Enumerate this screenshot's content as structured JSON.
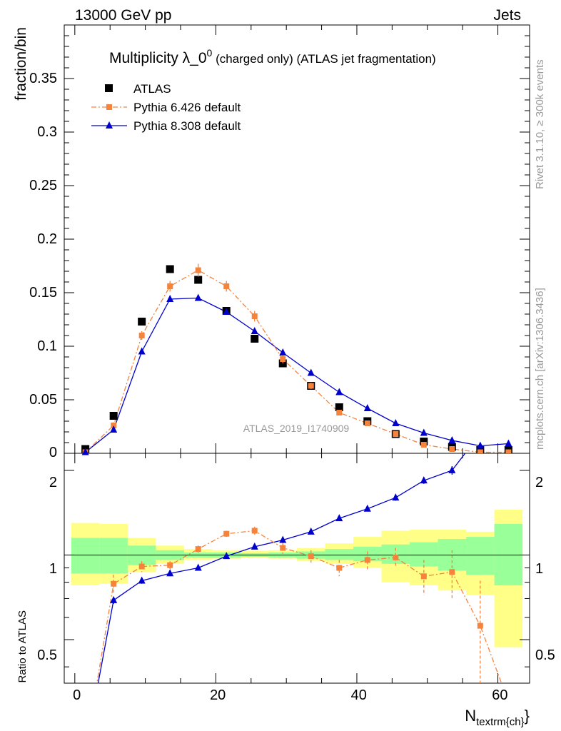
{
  "header": {
    "left": "13000 GeV pp",
    "right": "Jets"
  },
  "side_labels": {
    "rivet": "Rivet 3.1.10, ≥ 300k events",
    "mcplots": "mcplots.cern.ch [arXiv:1306.3436]"
  },
  "chart_data": {
    "type": "line",
    "title_main": "Multiplicity λ_0",
    "title_sup": "0",
    "title_tail": " (charged only) (ATLAS jet fragmentation)",
    "watermark": "ATLAS_2019_I1740909",
    "xlabel_main": "N",
    "xlabel_sub": "textrm{ch}",
    "xlabel_close": "}",
    "ylabel_top": "fraction/bin",
    "ylabel_bottom": "Ratio to ATLAS",
    "xlim": [
      -1.5,
      64.5
    ],
    "ylim_top": [
      0,
      0.4
    ],
    "ylim_bottom": [
      0.35,
      2.3
    ],
    "x_ticks": [
      "0",
      "20",
      "40",
      "60"
    ],
    "y_ticks_top": [
      "0",
      "0.05",
      "0.1",
      "0.15",
      "0.2",
      "0.25",
      "0.3",
      "0.35"
    ],
    "y_ticks_bottom": [
      "0.5",
      "1",
      "2"
    ],
    "legend": [
      {
        "name": "ATLAS",
        "color": "#000000"
      },
      {
        "name": "Pythia 6.426 default",
        "color": "#f5833c"
      },
      {
        "name": "Pythia 8.308 default",
        "color": "#0000cc"
      }
    ],
    "x": [
      1.5,
      5.5,
      9.5,
      13.5,
      17.5,
      21.5,
      25.5,
      29.5,
      33.5,
      37.5,
      41.5,
      45.5,
      49.5,
      53.5,
      57.5,
      61.5
    ],
    "series": [
      {
        "name": "ATLAS",
        "values": [
          0.004,
          0.035,
          0.123,
          0.172,
          0.162,
          0.133,
          0.107,
          0.084,
          0.063,
          0.043,
          0.03,
          0.018,
          0.011,
          0.006,
          0.003,
          0.003
        ]
      },
      {
        "name": "Pythia 6.426 default",
        "values": [
          0.001,
          0.026,
          0.11,
          0.156,
          0.171,
          0.156,
          0.128,
          0.088,
          0.063,
          0.038,
          0.028,
          0.018,
          0.008,
          0.004,
          0.001,
          0.001
        ],
        "errors": [
          0.0005,
          0.003,
          0.004,
          0.005,
          0.006,
          0.005,
          0.005,
          0.004,
          0.003,
          0.002,
          0.002,
          0.002,
          0.001,
          0.001,
          0.0005,
          0.0005
        ]
      },
      {
        "name": "Pythia 8.308 default",
        "values": [
          0.001,
          0.022,
          0.095,
          0.144,
          0.145,
          0.132,
          0.114,
          0.094,
          0.075,
          0.057,
          0.042,
          0.028,
          0.019,
          0.012,
          0.007,
          0.009
        ]
      }
    ],
    "ratio_series": [
      {
        "name": "Pythia 6.426 default",
        "values": [
          0.2,
          0.79,
          0.91,
          0.92,
          1.05,
          1.19,
          1.22,
          1.06,
          0.99,
          0.9,
          0.96,
          0.98,
          0.84,
          0.87,
          0.56,
          0.3
        ],
        "errors": [
          0.0,
          0.06,
          0.04,
          0.03,
          0.03,
          0.03,
          0.04,
          0.05,
          0.05,
          0.06,
          0.07,
          0.08,
          0.12,
          0.17,
          0.25,
          0.0
        ]
      },
      {
        "name": "Pythia 8.308 default",
        "values": [
          0.2,
          0.69,
          0.81,
          0.86,
          0.9,
          0.99,
          1.07,
          1.13,
          1.21,
          1.35,
          1.46,
          1.6,
          1.84,
          2.0,
          2.7,
          3.2
        ],
        "errors": [
          0.0,
          0.02,
          0.02,
          0.02,
          0.02,
          0.02,
          0.02,
          0.02,
          0.02,
          0.02,
          0.03,
          0.04,
          0.05,
          0.07,
          0.1,
          0.1
        ]
      }
    ],
    "uncertainty_bands": {
      "x_edges": [
        -0.5,
        3.5,
        7.5,
        11.5,
        15.5,
        19.5,
        23.5,
        27.5,
        31.5,
        35.5,
        39.5,
        43.5,
        47.5,
        51.5,
        55.5,
        59.5,
        63.5
      ],
      "stat_lo": [
        0.86,
        0.86,
        0.92,
        0.96,
        0.98,
        0.98,
        0.985,
        0.98,
        0.97,
        0.96,
        0.95,
        0.93,
        0.91,
        0.88,
        0.85,
        0.78
      ],
      "stat_hi": [
        1.15,
        1.15,
        1.08,
        1.04,
        1.02,
        1.02,
        1.015,
        1.02,
        1.03,
        1.05,
        1.07,
        1.09,
        1.11,
        1.14,
        1.16,
        1.29
      ],
      "total_lo": [
        0.78,
        0.79,
        0.87,
        0.93,
        0.96,
        0.97,
        0.975,
        0.97,
        0.95,
        0.93,
        0.9,
        0.8,
        0.78,
        0.75,
        0.72,
        0.47
      ],
      "total_hi": [
        1.3,
        1.29,
        1.15,
        1.08,
        1.05,
        1.04,
        1.035,
        1.04,
        1.06,
        1.1,
        1.16,
        1.22,
        1.23,
        1.23,
        1.21,
        1.45
      ]
    },
    "colors": {
      "stat_band": "#99ff99",
      "total_band": "#ffff88"
    }
  }
}
